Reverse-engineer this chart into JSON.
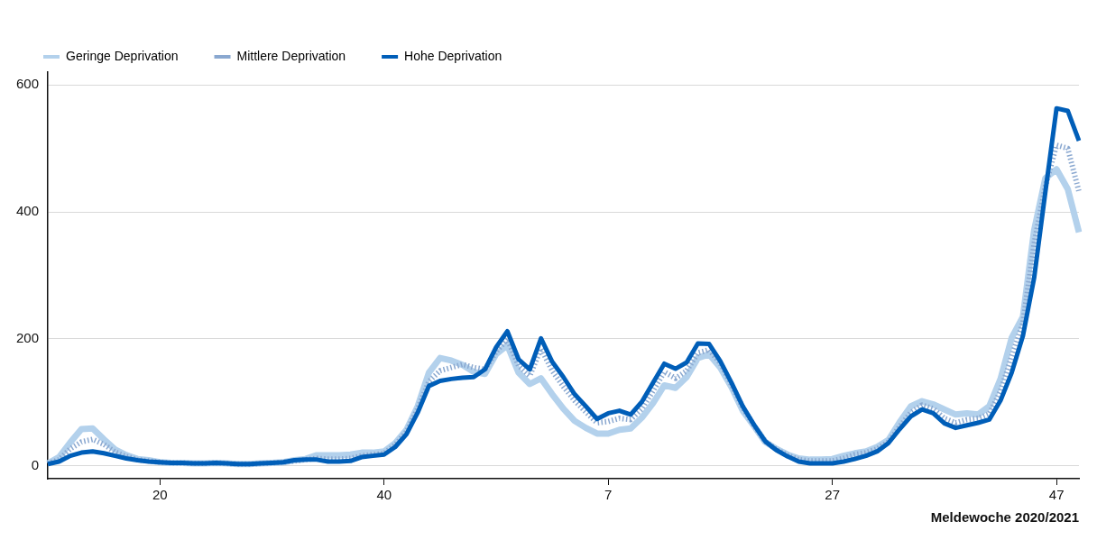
{
  "chart_data": {
    "type": "line",
    "xlabel": "Meldewoche 2020/2021",
    "categories": [
      null,
      null,
      null,
      null,
      null,
      null,
      null,
      null,
      null,
      null,
      "20",
      null,
      null,
      null,
      null,
      null,
      null,
      null,
      null,
      null,
      null,
      null,
      null,
      null,
      null,
      null,
      null,
      null,
      null,
      null,
      "40",
      null,
      null,
      null,
      null,
      null,
      null,
      null,
      null,
      null,
      null,
      null,
      null,
      null,
      null,
      null,
      null,
      null,
      null,
      null,
      "7",
      null,
      null,
      null,
      null,
      null,
      null,
      null,
      null,
      null,
      null,
      null,
      null,
      null,
      null,
      null,
      null,
      null,
      null,
      null,
      "27",
      null,
      null,
      null,
      null,
      null,
      null,
      null,
      null,
      null,
      null,
      null,
      null,
      null,
      null,
      null,
      null,
      null,
      null,
      null,
      "47",
      null,
      null
    ],
    "series": [
      {
        "name": "Geringe Deprivation",
        "color": "#b3d1ec",
        "line_style": "solid",
        "values": [
          4,
          14,
          37,
          58,
          59,
          42,
          26,
          17,
          11,
          9,
          6,
          5,
          5,
          4,
          4,
          5,
          4,
          3,
          3,
          4,
          5,
          6,
          9,
          11,
          17,
          17,
          17,
          18,
          21,
          21,
          23,
          36,
          57,
          94,
          147,
          170,
          166,
          159,
          148,
          145,
          176,
          190,
          147,
          129,
          138,
          113,
          90,
          71,
          60,
          51,
          51,
          57,
          59,
          76,
          99,
          127,
          123,
          140,
          170,
          176,
          155,
          124,
          87,
          63,
          38,
          27,
          18,
          12,
          10,
          10,
          11,
          16,
          20,
          23,
          30,
          41,
          69,
          94,
          102,
          97,
          89,
          81,
          83,
          81,
          94,
          137,
          202,
          235,
          371,
          453,
          467,
          436,
          368
        ]
      },
      {
        "name": "Mittlere Deprivation",
        "color": "#8aa8d0",
        "line_style": "dotted",
        "values": [
          4,
          10,
          27,
          38,
          42,
          34,
          22,
          15,
          10,
          8,
          6,
          5,
          5,
          4,
          4,
          5,
          4,
          3,
          3,
          4,
          5,
          6,
          8,
          10,
          12,
          11,
          11,
          12,
          16,
          18,
          20,
          33,
          54,
          90,
          133,
          150,
          155,
          160,
          155,
          152,
          180,
          200,
          158,
          142,
          185,
          150,
          125,
          103,
          85,
          68,
          70,
          75,
          73,
          90,
          118,
          148,
          138,
          150,
          178,
          183,
          162,
          128,
          92,
          64,
          39,
          26,
          17,
          10,
          8,
          8,
          8,
          12,
          18,
          21,
          27,
          38,
          62,
          84,
          96,
          90,
          75,
          68,
          73,
          75,
          82,
          118,
          172,
          225,
          350,
          440,
          505,
          500,
          432
        ]
      },
      {
        "name": "Hohe Deprivation",
        "color": "#005eb8",
        "line_style": "solid",
        "values": [
          3,
          7,
          16,
          21,
          23,
          20,
          16,
          12,
          9,
          7,
          6,
          5,
          5,
          4,
          4,
          5,
          4,
          3,
          3,
          4,
          5,
          6,
          9,
          10,
          10,
          7,
          7,
          8,
          14,
          16,
          18,
          30,
          50,
          84,
          126,
          134,
          137,
          139,
          140,
          152,
          187,
          212,
          168,
          152,
          201,
          164,
          140,
          113,
          94,
          74,
          83,
          87,
          81,
          101,
          131,
          161,
          153,
          163,
          193,
          192,
          165,
          131,
          94,
          65,
          39,
          25,
          15,
          7,
          4,
          4,
          4,
          7,
          11,
          16,
          23,
          36,
          58,
          78,
          89,
          83,
          67,
          60,
          64,
          68,
          73,
          103,
          147,
          205,
          296,
          431,
          563,
          559,
          512
        ]
      }
    ],
    "ylim": [
      -20,
      620
    ],
    "yticks": [
      0,
      200,
      400,
      600
    ],
    "grid": "y",
    "legend": "top left",
    "marker": "none"
  }
}
